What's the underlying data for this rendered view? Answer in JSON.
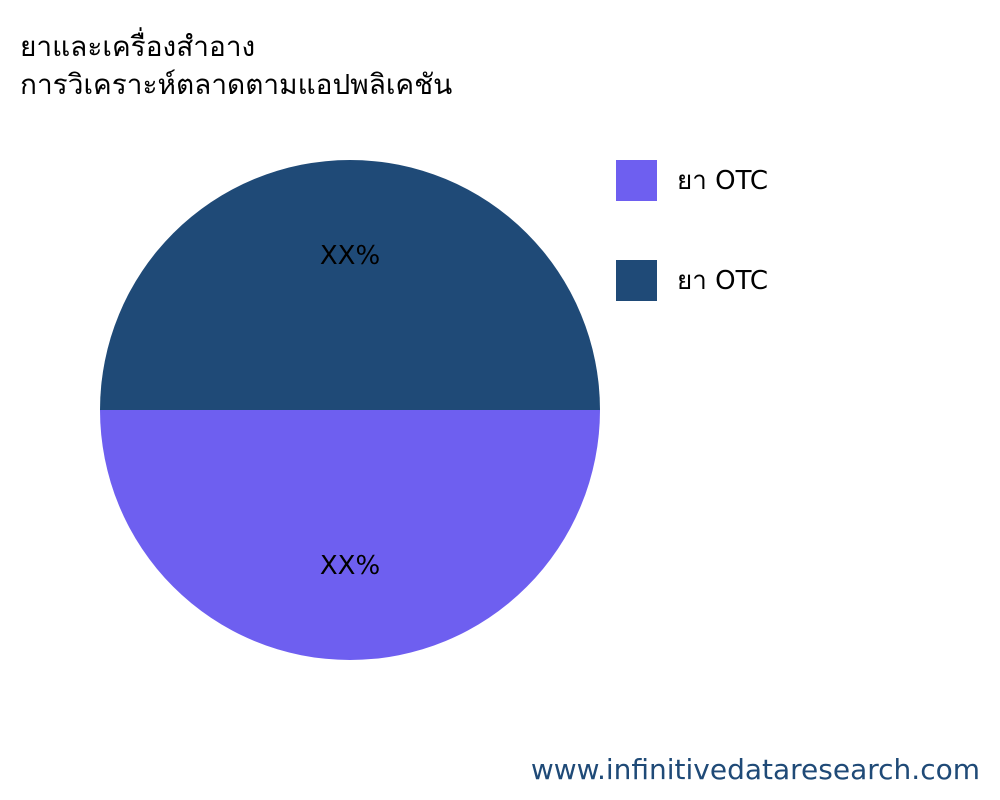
{
  "chart_data": {
    "type": "pie",
    "title": [
      "ยาและเครื่องสำอาง",
      "การวิเคราะห์ตลาดตามแอปพลิเคชัน"
    ],
    "slices": [
      {
        "label": "ยา OTC",
        "value": 50,
        "data_label": "XX%",
        "color": "#6e5ff0"
      },
      {
        "label": "ยา OTC",
        "value": 50,
        "data_label": "XX%",
        "color": "#1f4a77"
      }
    ],
    "legend_position": "right"
  },
  "footer": "www.infinitivedataresearch.com"
}
